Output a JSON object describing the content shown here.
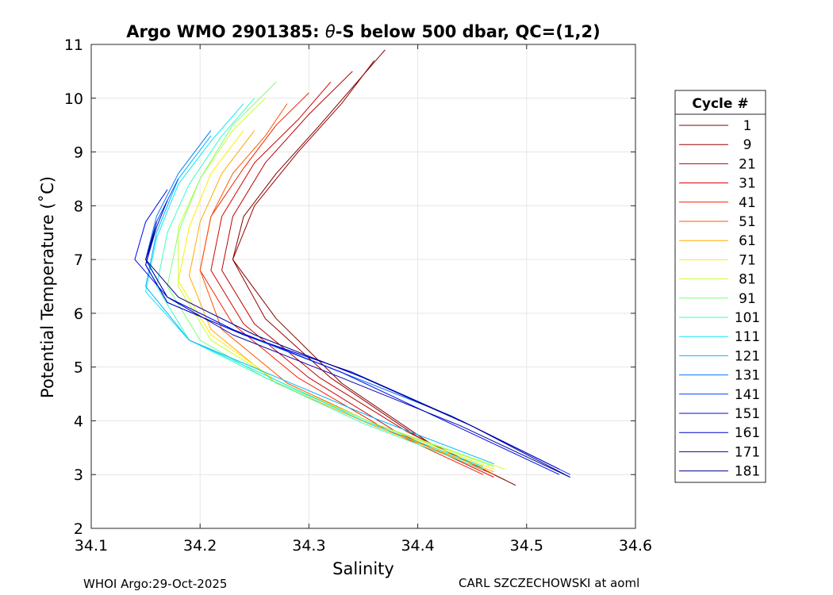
{
  "chart_data": {
    "type": "line",
    "title_prefix": "Argo WMO 2901385: ",
    "title_theta": "θ",
    "title_suffix": "-S below 500 dbar,  QC=(1,2)",
    "xlabel": "Salinity",
    "ylabel": "Potential Temperature (˚C)",
    "xlim": [
      34.1,
      34.6
    ],
    "ylim": [
      2,
      11
    ],
    "xticks": [
      34.1,
      34.2,
      34.3,
      34.4,
      34.5,
      34.6
    ],
    "xtick_labels": [
      "34.1",
      "34.2",
      "34.3",
      "34.4",
      "34.5",
      "34.6"
    ],
    "yticks": [
      2,
      3,
      4,
      5,
      6,
      7,
      8,
      9,
      10,
      11
    ],
    "ytick_labels": [
      "2",
      "3",
      "4",
      "5",
      "6",
      "7",
      "8",
      "9",
      "10",
      "11"
    ],
    "grid": true,
    "legend": {
      "title": "Cycle #",
      "placement": "outside-right",
      "entries": [
        {
          "label": "1",
          "color": "#800000"
        },
        {
          "label": "9",
          "color": "#990000"
        },
        {
          "label": "21",
          "color": "#b80000"
        },
        {
          "label": "31",
          "color": "#d60000"
        },
        {
          "label": "41",
          "color": "#f52000"
        },
        {
          "label": "51",
          "color": "#ff5500"
        },
        {
          "label": "61",
          "color": "#ffaa00"
        },
        {
          "label": "71",
          "color": "#ffee00"
        },
        {
          "label": "81",
          "color": "#c8ff2e"
        },
        {
          "label": "91",
          "color": "#7dff7a"
        },
        {
          "label": "101",
          "color": "#38ffbf"
        },
        {
          "label": "111",
          "color": "#0fe8ff"
        },
        {
          "label": "121",
          "color": "#00b5ff"
        },
        {
          "label": "131",
          "color": "#0078ff"
        },
        {
          "label": "141",
          "color": "#0040ff"
        },
        {
          "label": "151",
          "color": "#0008f0"
        },
        {
          "label": "161",
          "color": "#0000c8"
        },
        {
          "label": "171",
          "color": "#0000a4"
        },
        {
          "label": "181",
          "color": "#00008b"
        }
      ]
    },
    "series": [
      {
        "name": "1",
        "color": "#800000",
        "s": [
          34.49,
          34.41,
          34.33,
          34.27,
          34.23,
          34.24,
          34.27,
          34.31,
          34.34,
          34.37
        ],
        "t": [
          2.8,
          3.6,
          4.7,
          5.9,
          7.0,
          7.8,
          8.6,
          9.5,
          10.2,
          10.9
        ]
      },
      {
        "name": "9",
        "color": "#990000",
        "s": [
          34.48,
          34.4,
          34.32,
          34.26,
          34.23,
          34.25,
          34.29,
          34.33,
          34.36
        ],
        "t": [
          2.9,
          3.7,
          4.8,
          5.9,
          7.0,
          8.0,
          9.0,
          9.9,
          10.7
        ]
      },
      {
        "name": "21",
        "color": "#b80000",
        "s": [
          34.47,
          34.39,
          34.31,
          34.25,
          34.22,
          34.23,
          34.26,
          34.3,
          34.34
        ],
        "t": [
          3.0,
          3.8,
          4.8,
          5.8,
          6.8,
          7.8,
          8.8,
          9.7,
          10.5
        ]
      },
      {
        "name": "31",
        "color": "#d60000",
        "s": [
          34.47,
          34.38,
          34.3,
          34.24,
          34.21,
          34.22,
          34.25,
          34.29,
          34.32
        ],
        "t": [
          2.95,
          3.8,
          4.8,
          5.8,
          6.8,
          7.8,
          8.8,
          9.6,
          10.3
        ]
      },
      {
        "name": "41",
        "color": "#f52000",
        "s": [
          34.46,
          34.37,
          34.29,
          34.23,
          34.2,
          34.21,
          34.24,
          34.27,
          34.3
        ],
        "t": [
          3.0,
          3.85,
          4.8,
          5.8,
          6.8,
          7.8,
          8.7,
          9.5,
          10.1
        ]
      },
      {
        "name": "51",
        "color": "#ff5500",
        "s": [
          34.47,
          34.37,
          34.28,
          34.22,
          34.2,
          34.21,
          34.23,
          34.26,
          34.28
        ],
        "t": [
          3.0,
          3.85,
          4.7,
          5.7,
          6.8,
          7.8,
          8.6,
          9.3,
          9.9
        ]
      },
      {
        "name": "61",
        "color": "#ffaa00",
        "s": [
          34.47,
          34.36,
          34.27,
          34.21,
          34.19,
          34.2,
          34.22,
          34.25
        ],
        "t": [
          3.05,
          3.9,
          4.7,
          5.7,
          6.7,
          7.7,
          8.6,
          9.4
        ]
      },
      {
        "name": "71",
        "color": "#ffee00",
        "s": [
          34.47,
          34.36,
          34.27,
          34.21,
          34.18,
          34.19,
          34.21,
          34.24
        ],
        "t": [
          3.1,
          3.95,
          4.75,
          5.6,
          6.6,
          7.6,
          8.6,
          9.4
        ]
      },
      {
        "name": "81",
        "color": "#c8ff2e",
        "s": [
          34.48,
          34.36,
          34.27,
          34.21,
          34.18,
          34.18,
          34.2,
          34.23,
          34.26
        ],
        "t": [
          3.1,
          3.95,
          4.75,
          5.5,
          6.5,
          7.6,
          8.5,
          9.4,
          10.0
        ]
      },
      {
        "name": "91",
        "color": "#7dff7a",
        "s": [
          34.47,
          34.36,
          34.26,
          34.2,
          34.17,
          34.18,
          34.2,
          34.23,
          34.27
        ],
        "t": [
          3.15,
          3.95,
          4.8,
          5.5,
          6.5,
          7.5,
          8.5,
          9.5,
          10.3
        ]
      },
      {
        "name": "101",
        "color": "#38ffbf",
        "s": [
          34.46,
          34.35,
          34.26,
          34.19,
          34.16,
          34.17,
          34.19,
          34.22,
          34.25
        ],
        "t": [
          3.1,
          3.95,
          4.8,
          5.5,
          6.5,
          7.5,
          8.4,
          9.3,
          10.0
        ]
      },
      {
        "name": "111",
        "color": "#0fe8ff",
        "s": [
          34.46,
          34.35,
          34.26,
          34.19,
          34.15,
          34.16,
          34.18,
          34.21,
          34.24
        ],
        "t": [
          3.15,
          4.0,
          4.85,
          5.5,
          6.4,
          7.4,
          8.4,
          9.2,
          9.9
        ]
      },
      {
        "name": "121",
        "color": "#00b5ff",
        "s": [
          34.47,
          34.36,
          34.26,
          34.19,
          34.15,
          34.16,
          34.18,
          34.21
        ],
        "t": [
          3.2,
          4.05,
          4.9,
          5.5,
          6.5,
          7.5,
          8.5,
          9.3
        ]
      },
      {
        "name": "131",
        "color": "#0078ff",
        "s": [
          34.52,
          34.43,
          34.33,
          34.24,
          34.17,
          34.15,
          34.16,
          34.18,
          34.21
        ],
        "t": [
          3.2,
          4.1,
          4.9,
          5.6,
          6.3,
          7.0,
          7.8,
          8.6,
          9.4
        ]
      },
      {
        "name": "141",
        "color": "#0040ff",
        "s": [
          34.54,
          34.44,
          34.34,
          34.24,
          34.17,
          34.15,
          34.16,
          34.18
        ],
        "t": [
          3.0,
          4.0,
          4.9,
          5.6,
          6.2,
          6.9,
          7.7,
          8.5
        ]
      },
      {
        "name": "151",
        "color": "#0008f0",
        "s": [
          34.53,
          34.43,
          34.33,
          34.23,
          34.17,
          34.14,
          34.15,
          34.17
        ],
        "t": [
          3.0,
          3.95,
          4.9,
          5.7,
          6.3,
          7.0,
          7.7,
          8.3
        ]
      },
      {
        "name": "161",
        "color": "#0000c8",
        "s": [
          34.53,
          34.44,
          34.34,
          34.24,
          34.17,
          34.15,
          34.16,
          34.17
        ],
        "t": [
          3.1,
          4.0,
          4.9,
          5.6,
          6.2,
          6.9,
          7.6,
          8.1
        ]
      },
      {
        "name": "171",
        "color": "#0000a4",
        "s": [
          34.54,
          34.44,
          34.33,
          34.23,
          34.17,
          34.15,
          34.16
        ],
        "t": [
          2.95,
          3.9,
          4.8,
          5.6,
          6.3,
          7.0,
          7.7
        ]
      },
      {
        "name": "181",
        "color": "#00008b",
        "s": [
          34.54,
          34.45,
          34.35,
          34.25,
          34.18,
          34.15,
          34.16
        ],
        "t": [
          2.95,
          3.9,
          4.8,
          5.6,
          6.3,
          7.0,
          7.6
        ]
      }
    ]
  },
  "footer": {
    "left": "WHOI Argo:29-Oct-2025",
    "right": "CARL SZCZECHOWSKI at aoml"
  }
}
